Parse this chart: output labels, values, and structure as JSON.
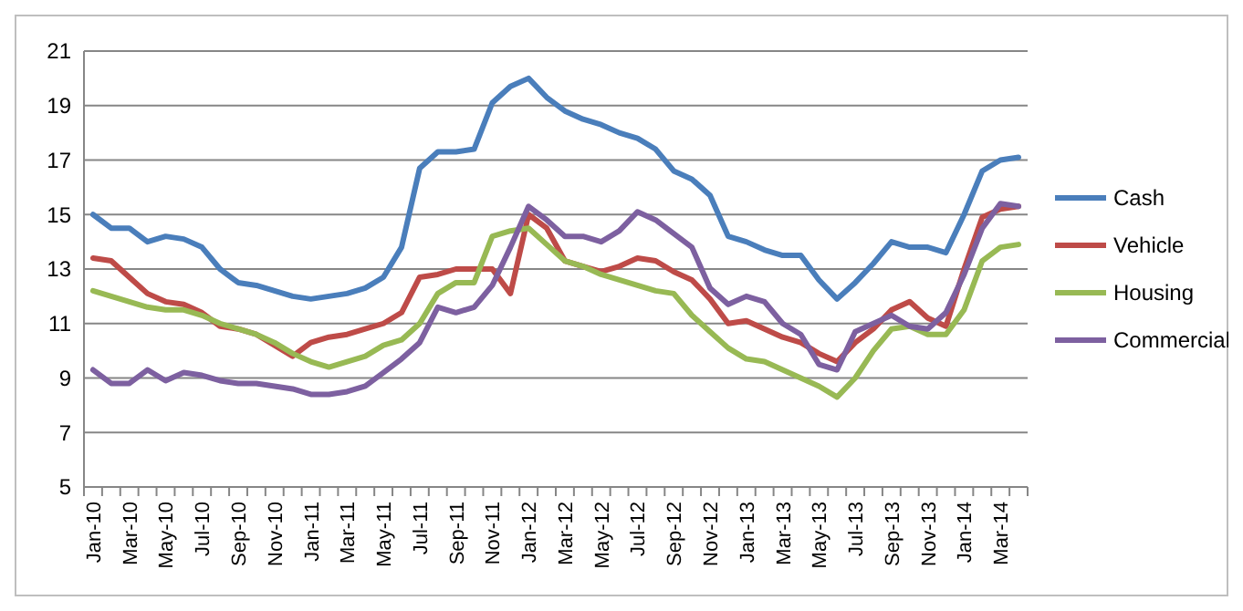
{
  "chart_data": {
    "type": "line",
    "categories": [
      "Jan-10",
      null,
      "Mar-10",
      null,
      "May-10",
      null,
      "Jul-10",
      null,
      "Sep-10",
      null,
      "Nov-10",
      null,
      "Jan-11",
      null,
      "Mar-11",
      null,
      "May-11",
      null,
      "Jul-11",
      null,
      "Sep-11",
      null,
      "Nov-11",
      null,
      "Jan-12",
      null,
      "Mar-12",
      null,
      "May-12",
      null,
      "Jul-12",
      null,
      "Sep-12",
      null,
      "Nov-12",
      null,
      "Jan-13",
      null,
      "Mar-13",
      null,
      "May-13",
      null,
      "Jul-13",
      null,
      "Sep-13",
      null,
      "Nov-13",
      null,
      "Jan-14",
      null,
      "Mar-14",
      null
    ],
    "series": [
      {
        "name": "Cash",
        "color": "#4a7ebb",
        "values": [
          15.0,
          14.5,
          14.5,
          14.0,
          14.2,
          14.1,
          13.8,
          13.0,
          12.5,
          12.4,
          12.2,
          12.0,
          11.9,
          12.0,
          12.1,
          12.3,
          12.7,
          13.8,
          16.7,
          17.3,
          17.3,
          17.4,
          19.1,
          19.7,
          20.0,
          19.3,
          18.8,
          18.5,
          18.3,
          18.0,
          17.8,
          17.4,
          16.6,
          16.3,
          15.7,
          14.2,
          14.0,
          13.7,
          13.5,
          13.5,
          12.6,
          11.9,
          12.5,
          13.2,
          14.0,
          13.8,
          13.8,
          13.6,
          15.0,
          16.6,
          17.0,
          17.1
        ]
      },
      {
        "name": "Vehicle",
        "color": "#be4b48",
        "values": [
          13.4,
          13.3,
          12.7,
          12.1,
          11.8,
          11.7,
          11.4,
          10.9,
          10.8,
          10.6,
          10.2,
          9.8,
          10.3,
          10.5,
          10.6,
          10.8,
          11.0,
          11.4,
          12.7,
          12.8,
          13.0,
          13.0,
          13.0,
          12.1,
          15.0,
          14.5,
          13.3,
          13.1,
          12.9,
          13.1,
          13.4,
          13.3,
          12.9,
          12.6,
          11.9,
          11.0,
          11.1,
          10.8,
          10.5,
          10.3,
          9.9,
          9.6,
          10.3,
          10.8,
          11.5,
          11.8,
          11.2,
          10.9,
          13.0,
          14.9,
          15.2,
          15.3
        ]
      },
      {
        "name": "Housing",
        "color": "#98b954",
        "values": [
          12.2,
          12.0,
          11.8,
          11.6,
          11.5,
          11.5,
          11.3,
          11.0,
          10.8,
          10.6,
          10.3,
          9.9,
          9.6,
          9.4,
          9.6,
          9.8,
          10.2,
          10.4,
          11.0,
          12.1,
          12.5,
          12.5,
          14.2,
          14.4,
          14.5,
          13.9,
          13.3,
          13.1,
          12.8,
          12.6,
          12.4,
          12.2,
          12.1,
          11.3,
          10.7,
          10.1,
          9.7,
          9.6,
          9.3,
          9.0,
          8.7,
          8.3,
          9.0,
          10.0,
          10.8,
          10.9,
          10.6,
          10.6,
          11.5,
          13.3,
          13.8,
          13.9
        ]
      },
      {
        "name": "Commercial",
        "color": "#7d60a0",
        "values": [
          9.3,
          8.8,
          8.8,
          9.3,
          8.9,
          9.2,
          9.1,
          8.9,
          8.8,
          8.8,
          8.7,
          8.6,
          8.4,
          8.4,
          8.5,
          8.7,
          9.2,
          9.7,
          10.3,
          11.6,
          11.4,
          11.6,
          12.4,
          13.8,
          15.3,
          14.8,
          14.2,
          14.2,
          14.0,
          14.4,
          15.1,
          14.8,
          14.3,
          13.8,
          12.3,
          11.7,
          12.0,
          11.8,
          11.0,
          10.6,
          9.5,
          9.3,
          10.7,
          11.0,
          11.3,
          10.9,
          10.8,
          11.4,
          12.8,
          14.5,
          15.4,
          15.3
        ]
      }
    ],
    "ylim": [
      5,
      21
    ],
    "yticks": [
      5,
      7,
      9,
      11,
      13,
      15,
      17,
      19,
      21
    ],
    "grid": "y",
    "legend": "right",
    "marker": "none",
    "line_style": "solid"
  }
}
